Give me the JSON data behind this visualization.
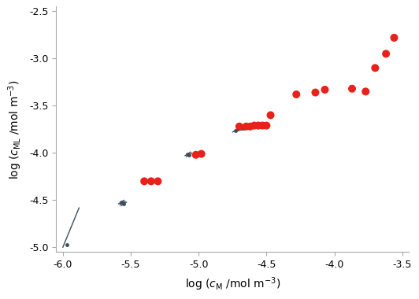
{
  "xlim": [
    -6.05,
    -3.45
  ],
  "ylim": [
    -5.05,
    -2.45
  ],
  "xticks": [
    -6.0,
    -5.5,
    -5.0,
    -4.5,
    -4.0,
    -3.5
  ],
  "yticks": [
    -5.0,
    -4.5,
    -4.0,
    -3.5,
    -3.0,
    -2.5
  ],
  "xlabel": "log (c_M /mol m⁻³)",
  "ylabel": "log (c_ML /mol m⁻³)",
  "red_dots": [
    [
      -5.4,
      -4.3
    ],
    [
      -5.35,
      -4.3
    ],
    [
      -5.3,
      -4.3
    ],
    [
      -5.02,
      -4.02
    ],
    [
      -4.98,
      -4.01
    ],
    [
      -4.7,
      -3.72
    ],
    [
      -4.65,
      -3.72
    ],
    [
      -4.62,
      -3.72
    ],
    [
      -4.59,
      -3.71
    ],
    [
      -4.56,
      -3.71
    ],
    [
      -4.53,
      -3.71
    ],
    [
      -4.5,
      -3.71
    ],
    [
      -4.47,
      -3.6
    ],
    [
      -4.28,
      -3.38
    ],
    [
      -4.14,
      -3.36
    ],
    [
      -4.07,
      -3.33
    ],
    [
      -3.87,
      -3.32
    ],
    [
      -3.77,
      -3.35
    ],
    [
      -3.7,
      -3.1
    ],
    [
      -3.62,
      -2.95
    ],
    [
      -3.56,
      -2.78
    ]
  ],
  "gray_segments": [
    [
      [
        -6.0,
        -5.88
      ],
      [
        -5.0,
        -4.58
      ]
    ],
    [
      [
        -5.59,
        -5.55
      ],
      [
        -4.54,
        -4.5
      ]
    ],
    [
      [
        -5.58,
        -5.54
      ],
      [
        -4.55,
        -4.51
      ]
    ],
    [
      [
        -5.57,
        -5.53
      ],
      [
        -4.56,
        -4.52
      ]
    ],
    [
      [
        -5.1,
        -5.06
      ],
      [
        -4.03,
        -3.99
      ]
    ],
    [
      [
        -5.09,
        -5.05
      ],
      [
        -4.04,
        -4.0
      ]
    ],
    [
      [
        -4.75,
        -4.71
      ],
      [
        -3.78,
        -3.74
      ]
    ],
    [
      [
        -4.73,
        -4.69
      ],
      [
        -3.77,
        -3.73
      ]
    ],
    [
      [
        -4.71,
        -4.67
      ],
      [
        -3.76,
        -3.72
      ]
    ],
    [
      [
        -4.69,
        -4.65
      ],
      [
        -3.755,
        -3.715
      ]
    ],
    [
      [
        -4.67,
        -4.63
      ],
      [
        -3.75,
        -3.71
      ]
    ],
    [
      [
        -4.65,
        -4.61
      ],
      [
        -3.745,
        -3.705
      ]
    ],
    [
      [
        -4.63,
        -4.59
      ],
      [
        -3.74,
        -3.7
      ]
    ],
    [
      [
        -4.61,
        -4.57
      ],
      [
        -3.735,
        -3.695
      ]
    ]
  ],
  "red_color": "#e8221a",
  "gray_color": "#3d4f5c",
  "bg_color": "#ffffff"
}
